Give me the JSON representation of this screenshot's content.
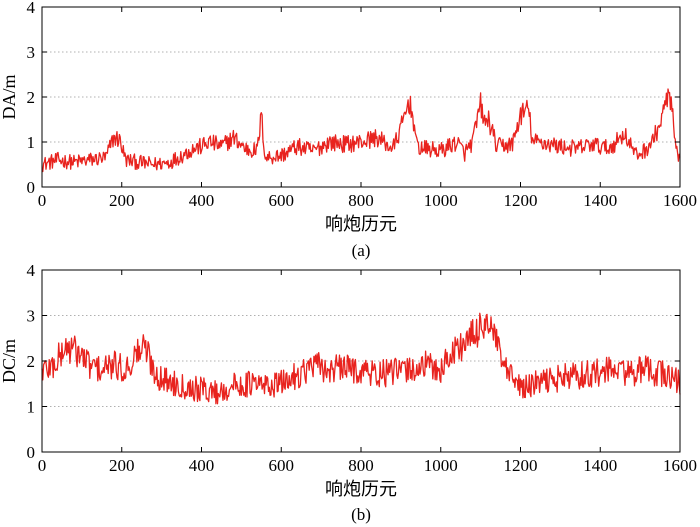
{
  "chart_data": [
    {
      "type": "line",
      "panel_label": "(a)",
      "xlabel": "响炮历元",
      "ylabel": "DA/m",
      "xlim": [
        0,
        1600
      ],
      "ylim": [
        0,
        4
      ],
      "xticks": [
        0,
        200,
        400,
        600,
        800,
        1000,
        1200,
        1400,
        1600
      ],
      "yticks": [
        0,
        1,
        2,
        3,
        4
      ],
      "grid": "horizontal dotted",
      "line_color": "#e8231e",
      "series": [
        {
          "name": "DA",
          "x": [
            0,
            40,
            80,
            120,
            160,
            180,
            195,
            210,
            240,
            280,
            320,
            350,
            380,
            400,
            420,
            450,
            480,
            510,
            540,
            550,
            560,
            600,
            640,
            680,
            720,
            760,
            800,
            840,
            880,
            900,
            920,
            930,
            940,
            960,
            1000,
            1040,
            1060,
            1080,
            1100,
            1110,
            1120,
            1140,
            1180,
            1200,
            1220,
            1230,
            1250,
            1300,
            1340,
            1380,
            1420,
            1440,
            1460,
            1490,
            1510,
            1530,
            1550,
            1560,
            1570,
            1580,
            1590,
            1600
          ],
          "y": [
            0.5,
            0.6,
            0.55,
            0.6,
            0.65,
            1.1,
            1.05,
            0.6,
            0.55,
            0.5,
            0.55,
            0.7,
            0.85,
            0.9,
            1.0,
            0.9,
            1.1,
            0.85,
            0.8,
            1.6,
            0.65,
            0.7,
            0.9,
            0.8,
            1.0,
            0.95,
            1.0,
            1.1,
            0.85,
            1.3,
            1.9,
            1.6,
            0.9,
            0.85,
            0.8,
            1.0,
            0.75,
            1.0,
            1.85,
            1.4,
            1.5,
            0.9,
            0.95,
            1.6,
            1.75,
            1.0,
            1.0,
            0.9,
            0.85,
            0.95,
            0.85,
            1.0,
            1.2,
            0.7,
            0.8,
            1.0,
            1.4,
            1.7,
            2.1,
            1.7,
            0.8,
            0.5
          ]
        }
      ]
    },
    {
      "type": "line",
      "panel_label": "(b)",
      "xlabel": "响炮历元",
      "ylabel": "DC/m",
      "xlim": [
        0,
        1600
      ],
      "ylim": [
        0,
        4
      ],
      "xticks": [
        0,
        200,
        400,
        600,
        800,
        1000,
        1200,
        1400,
        1600
      ],
      "yticks": [
        0,
        1,
        2,
        3,
        4
      ],
      "grid": "horizontal dotted",
      "line_color": "#e8231e",
      "series": [
        {
          "name": "DC",
          "x": [
            0,
            30,
            60,
            90,
            120,
            150,
            180,
            210,
            240,
            260,
            280,
            300,
            340,
            380,
            420,
            440,
            480,
            520,
            560,
            600,
            640,
            680,
            720,
            760,
            800,
            840,
            880,
            920,
            960,
            1000,
            1030,
            1060,
            1090,
            1110,
            1120,
            1140,
            1160,
            1190,
            1210,
            1240,
            1280,
            1320,
            1360,
            1400,
            1440,
            1480,
            1520,
            1560,
            1580,
            1600
          ],
          "y": [
            1.8,
            1.9,
            2.3,
            2.2,
            1.9,
            1.8,
            1.9,
            1.8,
            2.2,
            2.3,
            1.8,
            1.6,
            1.5,
            1.4,
            1.35,
            1.3,
            1.45,
            1.5,
            1.45,
            1.5,
            1.7,
            1.9,
            1.8,
            1.85,
            1.8,
            1.7,
            1.75,
            1.8,
            1.9,
            1.8,
            2.2,
            2.4,
            2.6,
            2.9,
            2.8,
            2.4,
            1.8,
            1.5,
            1.4,
            1.5,
            1.6,
            1.65,
            1.7,
            1.75,
            1.8,
            1.75,
            1.8,
            1.7,
            1.65,
            1.5
          ]
        }
      ]
    }
  ]
}
